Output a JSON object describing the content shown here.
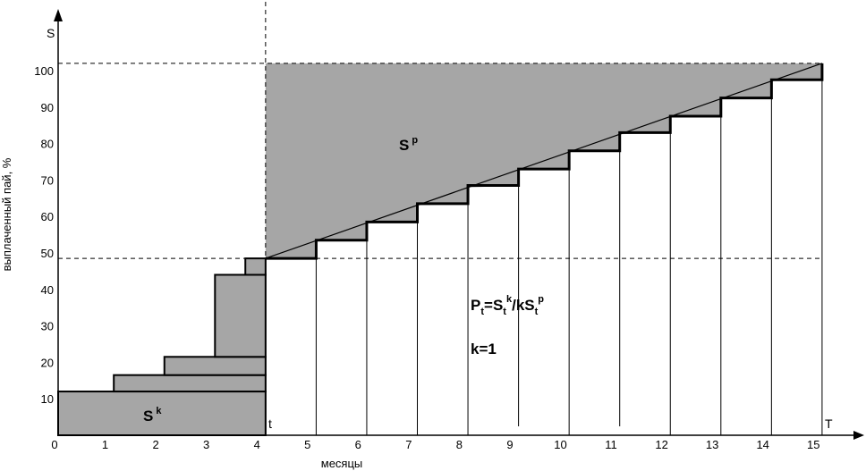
{
  "chart_data": {
    "type": "diagram",
    "y_axis_letter": "S",
    "y_axis_title": "выплаченный пай, %",
    "x_axis_title": "месяцы",
    "x_end_letter": "T",
    "t_marker": "t",
    "x_ticks": [
      "0",
      "1",
      "2",
      "3",
      "4",
      "5",
      "6",
      "7",
      "8",
      "9",
      "10",
      "11",
      "12",
      "13",
      "14",
      "15"
    ],
    "y_ticks": [
      {
        "label": "10",
        "value": 10
      },
      {
        "label": "20",
        "value": 20
      },
      {
        "label": "30",
        "value": 30
      },
      {
        "label": "40",
        "value": 40
      },
      {
        "label": "50",
        "value": 50
      },
      {
        "label": "60",
        "value": 60
      },
      {
        "label": "70",
        "value": 70
      },
      {
        "label": "80",
        "value": 80
      },
      {
        "label": "90",
        "value": 90
      },
      {
        "label": "100",
        "value": 100
      }
    ],
    "sk_label": "S",
    "sk_sup": "k",
    "sp_label": "S",
    "sp_sup": "p",
    "formula": {
      "p": "P",
      "p_sub": "t",
      "eq_s": "=S",
      "s_sub1": "t",
      "s_sup1": "k",
      "mid": "/kS",
      "s_sub2": "t",
      "s_sup2": "p"
    },
    "k_label": "k=1",
    "t_month": 4,
    "T_month": 15,
    "line_start_value": 48.5,
    "line_end_value": 102,
    "left_bars": [
      {
        "from": 0,
        "to": 4.1,
        "bottom": 0,
        "top": 12
      },
      {
        "from": 1.1,
        "to": 4.1,
        "bottom": 12,
        "top": 16.5
      },
      {
        "from": 2.1,
        "to": 4.1,
        "bottom": 16.5,
        "top": 21.5
      },
      {
        "from": 3.1,
        "to": 4.1,
        "bottom": 21.5,
        "top": 44
      },
      {
        "from": 3.7,
        "to": 4.1,
        "bottom": 44,
        "top": 48.5
      }
    ],
    "steps": [
      {
        "month": 4.1,
        "value": 48.5
      },
      {
        "month": 5.1,
        "value": 53.5
      },
      {
        "month": 6.1,
        "value": 58.5
      },
      {
        "month": 7.1,
        "value": 63.5
      },
      {
        "month": 8.1,
        "value": 68.5
      },
      {
        "month": 9.1,
        "value": 73
      },
      {
        "month": 10.1,
        "value": 78
      },
      {
        "month": 11.1,
        "value": 83
      },
      {
        "month": 12.1,
        "value": 87.5
      },
      {
        "month": 13.1,
        "value": 92.5
      },
      {
        "month": 14.1,
        "value": 97.5
      },
      {
        "month": 15.1,
        "value": 102
      }
    ]
  }
}
